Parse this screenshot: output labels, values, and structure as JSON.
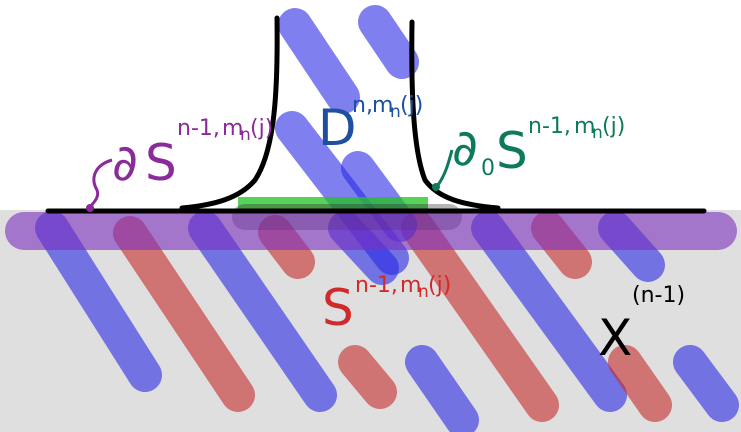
{
  "colors": {
    "background": "#ffffff",
    "slab_fill": "#d9d9d9",
    "blue_stripe": "#2a2ae6",
    "red_stripe": "#c42b2b",
    "purple_band": "#7b2fbe",
    "green_strip": "#22c322",
    "outline": "#000000",
    "label_purple": "#8b2a9a",
    "label_teal": "#0e7a5c",
    "label_darkblue": "#1d4fa3",
    "label_red": "#d02a2a",
    "label_black": "#000000"
  },
  "labels": {
    "boundary_S": {
      "prefix": "∂",
      "main": "S",
      "superscript": "n-1,",
      "superscript_sub": "m",
      "superscript_sub2": "n",
      "superscript_tail": "(j)",
      "color": "#8b2a9a"
    },
    "boundary0_S": {
      "prefix": "∂",
      "subscript": "0",
      "main": "S",
      "superscript": "n-1,",
      "superscript_sub": "m",
      "superscript_sub2": "n",
      "superscript_tail": "(j)",
      "color": "#0e7a5c"
    },
    "disk_D": {
      "main": "D",
      "superscript": "n,",
      "superscript_sub": "m",
      "superscript_sub2": "n",
      "superscript_tail": "(j)",
      "color": "#1d4fa3"
    },
    "sphere_S": {
      "main": "S",
      "superscript": "n-1,",
      "superscript_sub": "m",
      "superscript_sub2": "n",
      "superscript_tail": "(j)",
      "color": "#d02a2a"
    },
    "skeleton_X": {
      "main": "X",
      "superscript": "(n-1)",
      "color": "#000000"
    }
  }
}
